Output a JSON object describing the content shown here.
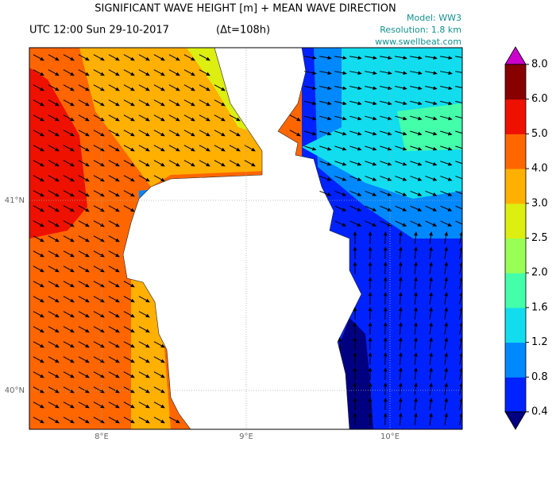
{
  "header": {
    "title": "SIGNIFICANT WAVE HEIGHT [m] + MEAN WAVE DIRECTION",
    "time": "UTC 12:00 Sun 29-10-2017",
    "delta": "(Δt=108h)",
    "model": "Model: WW3",
    "resolution": "Resolution: 1.8 km",
    "site": "www.swellbeat.com"
  },
  "map": {
    "lat_labels": [
      "41°N",
      "40°N"
    ],
    "lon_labels": [
      "8°E",
      "9°E",
      "10°E"
    ]
  },
  "colorbar": {
    "ticks": [
      "0.4",
      "0.8",
      "1.2",
      "1.6",
      "2.0",
      "2.5",
      "3.0",
      "4.0",
      "5.0",
      "6.0",
      "8.0"
    ],
    "colors": [
      "#0022ff",
      "#0088ff",
      "#11ddee",
      "#44ffaa",
      "#99ff55",
      "#ddee11",
      "#ffb000",
      "#ff6600",
      "#ee1100",
      "#880000"
    ],
    "under_color": "#000080",
    "over_color": "#cc00cc"
  }
}
